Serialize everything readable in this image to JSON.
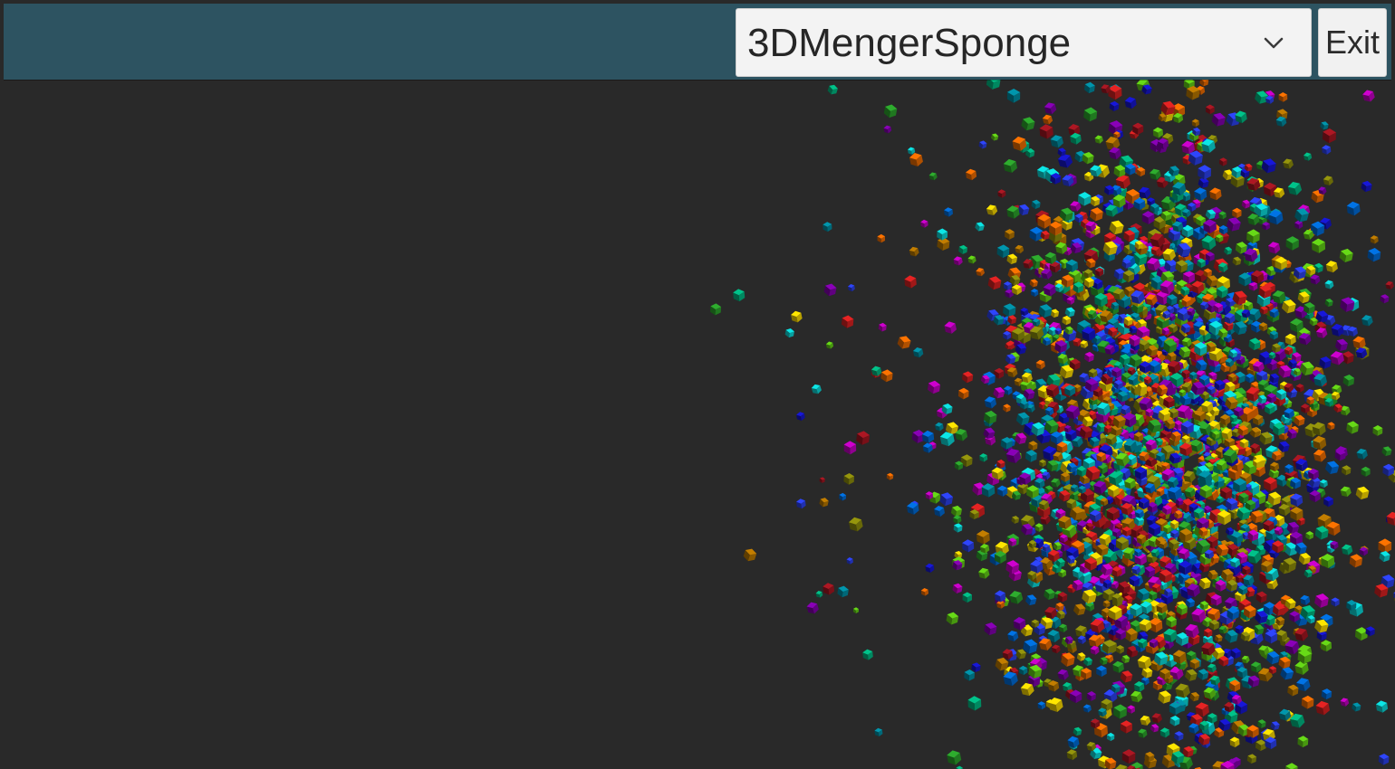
{
  "scene_selector": {
    "selected": "3DMengerSponge",
    "icon": "chevron-down-icon"
  },
  "exit_button": {
    "label": "Exit"
  },
  "colors": {
    "background": "#292929",
    "topbar": "#2d5361",
    "control_bg": "#f3f3f3"
  }
}
